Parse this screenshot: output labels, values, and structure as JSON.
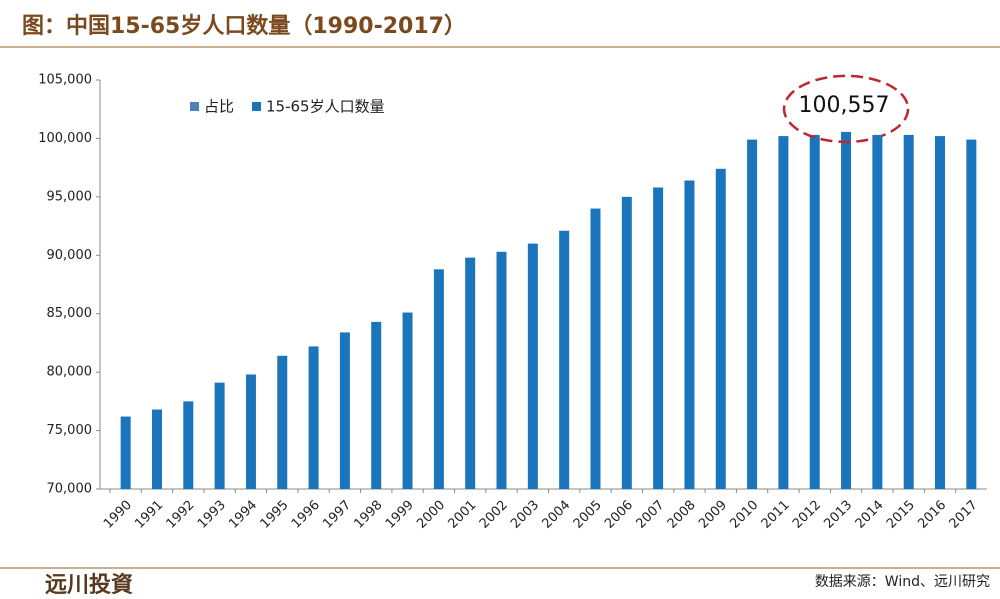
{
  "chart_data": {
    "type": "bar",
    "title": "图：中国15-65岁人口数量（1990-2017）",
    "categories": [
      "1990",
      "1991",
      "1992",
      "1993",
      "1994",
      "1995",
      "1996",
      "1997",
      "1998",
      "1999",
      "2000",
      "2001",
      "2002",
      "2003",
      "2004",
      "2005",
      "2006",
      "2007",
      "2008",
      "2009",
      "2010",
      "2011",
      "2012",
      "2013",
      "2014",
      "2015",
      "2016",
      "2017"
    ],
    "series": [
      {
        "name": "占比",
        "color": "#4f81bd",
        "values": [
          null,
          null,
          null,
          null,
          null,
          null,
          null,
          null,
          null,
          null,
          null,
          null,
          null,
          null,
          null,
          null,
          null,
          null,
          null,
          null,
          null,
          null,
          null,
          null,
          null,
          null,
          null,
          null
        ]
      },
      {
        "name": "15-65岁人口数量",
        "color": "#1a75bc",
        "values": [
          76200,
          76800,
          77500,
          79100,
          79800,
          81400,
          82200,
          83400,
          84300,
          85100,
          88800,
          89800,
          90300,
          91000,
          92100,
          94000,
          95000,
          95800,
          96400,
          97400,
          99900,
          100200,
          100300,
          100557,
          100300,
          100300,
          100200,
          99900
        ]
      }
    ],
    "value_labels": [
      null,
      null,
      null,
      null,
      null,
      null,
      null,
      null,
      null,
      null,
      null,
      null,
      null,
      null,
      null,
      null,
      null,
      null,
      null,
      null,
      null,
      null,
      null,
      "100,557",
      null,
      null,
      null,
      null
    ],
    "ylim": [
      70000,
      105000
    ],
    "yticks": [
      {
        "value": 70000,
        "label": "70,000"
      },
      {
        "value": 75000,
        "label": "75,000"
      },
      {
        "value": 80000,
        "label": "80,000"
      },
      {
        "value": 85000,
        "label": "85,000"
      },
      {
        "value": 90000,
        "label": "90,000"
      },
      {
        "value": 95000,
        "label": "95,000"
      },
      {
        "value": 100000,
        "label": "100,000"
      },
      {
        "value": 105000,
        "label": "105,000"
      }
    ],
    "grid": false,
    "legend": "top-left",
    "source": "数据来源：Wind、远川研究"
  },
  "logo": "远川投資"
}
